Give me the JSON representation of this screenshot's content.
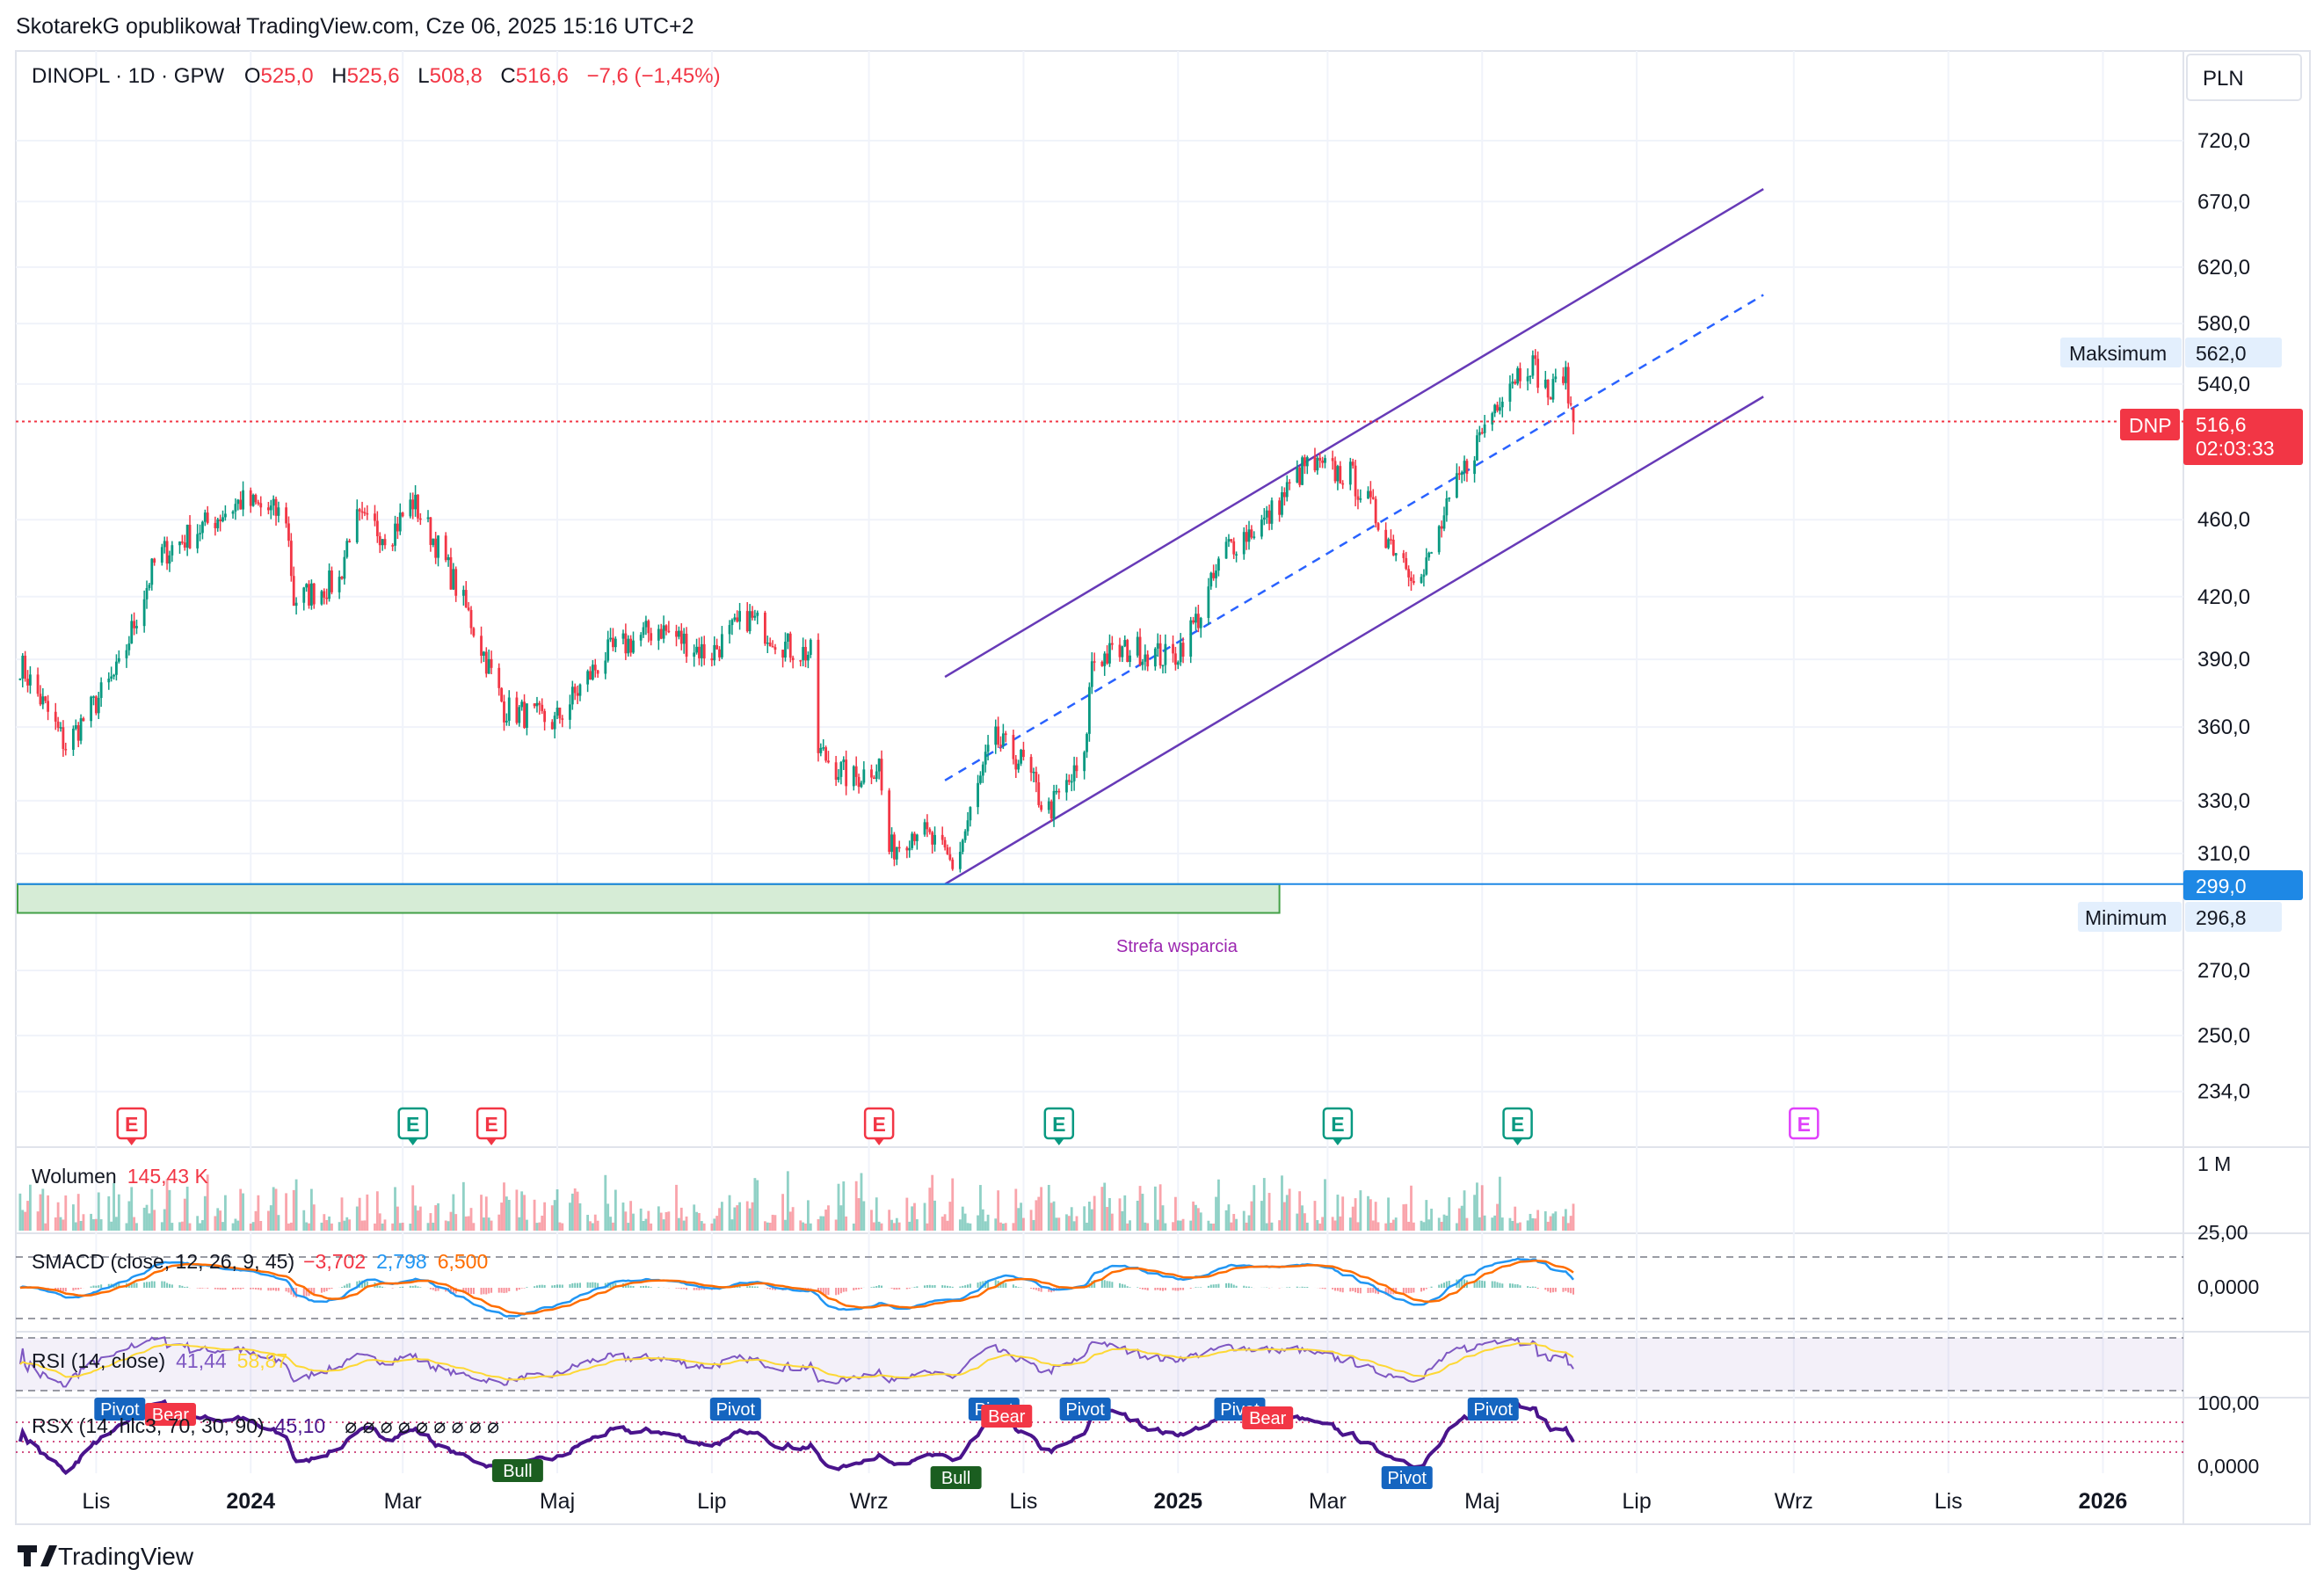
{
  "publish_line": "SkotarekG opublikował TradingView.com, Cze 06, 2025 15:16 UTC+2",
  "logo_text": "TradingView",
  "currency": "PLN",
  "ticker": {
    "symbol_line": "DINOPL · 1D · GPW",
    "o_label": "O",
    "o_value": "525,0",
    "h_label": "H",
    "h_value": "525,6",
    "l_label": "L",
    "l_value": "508,8",
    "c_label": "C",
    "c_value": "516,6",
    "change": "−7,6 (−1,45%)"
  },
  "badges": {
    "max_label": "Maksimum",
    "max_value": "562,0",
    "dnp_label": "DNP",
    "dnp_value": "516,6",
    "dnp_timer": "02:03:33",
    "support_value": "299,0",
    "min_label": "Minimum",
    "min_value": "296,8"
  },
  "support_zone_label": "Strefa wsparcia",
  "earnings_marker": "E",
  "volume": {
    "label": "Wolumen",
    "value": "145,43 K",
    "axis_label": "1 M"
  },
  "smacd": {
    "label": "SMACD (close, 12, 26, 9, 45)",
    "v1": "−3,702",
    "v2": "2,798",
    "v3": "6,500",
    "axis_top": "25,00",
    "axis_zero": "0,0000"
  },
  "rsi": {
    "label": "RSI (14, close)",
    "v1": "41,44",
    "v2": "58,87"
  },
  "rsx": {
    "label": "RSX (14, hlc3, 70, 30, 90)",
    "value": "45,10",
    "dots": "⌀ ⌀ ⌀ ⌀ ⌀ ⌀ ⌀ ⌀ ⌀",
    "axis_top": "100,00",
    "axis_bottom": "0,0000"
  },
  "rsx_tags": [
    "Pivot",
    "Bear",
    "Pivot",
    "Pivot",
    "Bear",
    "Pivot",
    "Pivot",
    "Bear",
    "Pivot",
    "Bull",
    "Bull",
    "Pivot"
  ],
  "colors": {
    "up": "#089981",
    "down": "#f23645",
    "channel": "#673ab7",
    "midline": "#2962ff",
    "support": "#1e88e5",
    "zone_fill": "#d6ecd6",
    "zone_border": "#43a047",
    "macd": "#2196f3",
    "signal": "#ff6d00",
    "rsi": "#7e57c2",
    "rsi_ma": "#fdd835",
    "rsx": "#4a148c"
  },
  "chart_data": {
    "type": "candlestick",
    "title": "DINOPL · 1D · GPW",
    "y_axis_ticks": [
      "720,0",
      "670,0",
      "620,0",
      "580,0",
      "540,0",
      "460,0",
      "420,0",
      "390,0",
      "360,0",
      "330,0",
      "310,0",
      "270,0",
      "250,0",
      "234,0"
    ],
    "x_axis_ticks": [
      "Lis",
      "2024",
      "Mar",
      "Maj",
      "Lip",
      "Wrz",
      "Lis",
      "2025",
      "Mar",
      "Maj",
      "Lip",
      "Wrz",
      "Lis",
      "2026"
    ],
    "y_scale": "log",
    "ylim": [
      225,
      760
    ],
    "close_anchors": [
      [
        "2023-10-01",
        390
      ],
      [
        "2023-10-20",
        352
      ],
      [
        "2023-11-10",
        385
      ],
      [
        "2023-11-25",
        440
      ],
      [
        "2023-12-15",
        458
      ],
      [
        "2023-12-28",
        470
      ],
      [
        "2024-01-15",
        462
      ],
      [
        "2024-01-18",
        418
      ],
      [
        "2024-02-05",
        428
      ],
      [
        "2024-02-10",
        460
      ],
      [
        "2024-02-25",
        452
      ],
      [
        "2024-03-05",
        470
      ],
      [
        "2024-03-15",
        445
      ],
      [
        "2024-03-28",
        408
      ],
      [
        "2024-04-10",
        368
      ],
      [
        "2024-04-30",
        362
      ],
      [
        "2024-05-20",
        392
      ],
      [
        "2024-06-10",
        405
      ],
      [
        "2024-06-30",
        392
      ],
      [
        "2024-07-15",
        410
      ],
      [
        "2024-08-01",
        395
      ],
      [
        "2024-08-10",
        392
      ],
      [
        "2024-08-12",
        350
      ],
      [
        "2024-08-25",
        338
      ],
      [
        "2024-09-05",
        345
      ],
      [
        "2024-09-08",
        310
      ],
      [
        "2024-09-20",
        320
      ],
      [
        "2024-10-05",
        305
      ],
      [
        "2024-10-20",
        355
      ],
      [
        "2024-11-01",
        345
      ],
      [
        "2024-11-10",
        325
      ],
      [
        "2024-11-25",
        345
      ],
      [
        "2024-11-28",
        390
      ],
      [
        "2024-12-15",
        395
      ],
      [
        "2024-12-30",
        390
      ],
      [
        "2025-01-10",
        412
      ],
      [
        "2025-01-20",
        445
      ],
      [
        "2025-02-05",
        460
      ],
      [
        "2025-02-20",
        490
      ],
      [
        "2025-03-10",
        485
      ],
      [
        "2025-03-25",
        450
      ],
      [
        "2025-04-07",
        428
      ],
      [
        "2025-04-20",
        475
      ],
      [
        "2025-05-10",
        540
      ],
      [
        "2025-05-20",
        555
      ],
      [
        "2025-05-28",
        532
      ],
      [
        "2025-06-02",
        550
      ],
      [
        "2025-06-06",
        516.6
      ]
    ],
    "last": {
      "open": 525.0,
      "high": 525.6,
      "low": 508.8,
      "close": 516.6,
      "change": -7.6,
      "change_pct": -1.45
    },
    "period_high": 562.0,
    "period_low": 296.8,
    "support_level": 299.0,
    "support_zone": {
      "from": "2023-10-01",
      "to": "2025-02-10",
      "low": 289,
      "high": 299
    },
    "channel": {
      "upper": [
        [
          "2024-10-01",
          382
        ],
        [
          "2025-08-20",
          680
        ]
      ],
      "lower": [
        [
          "2024-10-01",
          299
        ],
        [
          "2025-08-20",
          532
        ]
      ],
      "mid": [
        [
          "2024-10-01",
          338
        ],
        [
          "2025-08-20",
          600
        ]
      ]
    },
    "earnings_events": [
      [
        "2023-11-15",
        "down"
      ],
      [
        "2024-03-05",
        "up"
      ],
      [
        "2024-04-05",
        "down"
      ],
      [
        "2024-09-05",
        "down"
      ],
      [
        "2024-11-15",
        "up"
      ],
      [
        "2025-03-05",
        "up"
      ],
      [
        "2025-05-15",
        "up"
      ],
      [
        "2025-09-05",
        "future"
      ]
    ],
    "indicators": {
      "volume_last": "145,43 K",
      "smacd": {
        "params": "close, 12, 26, 9, 45",
        "macd": -3.702,
        "signal": 2.798,
        "hist": 6.5
      },
      "rsi": {
        "params": "14, close",
        "value": 41.44,
        "ma": 58.87
      },
      "rsx": {
        "params": "14, hlc3, 70, 30, 90",
        "value": 45.1
      }
    }
  }
}
